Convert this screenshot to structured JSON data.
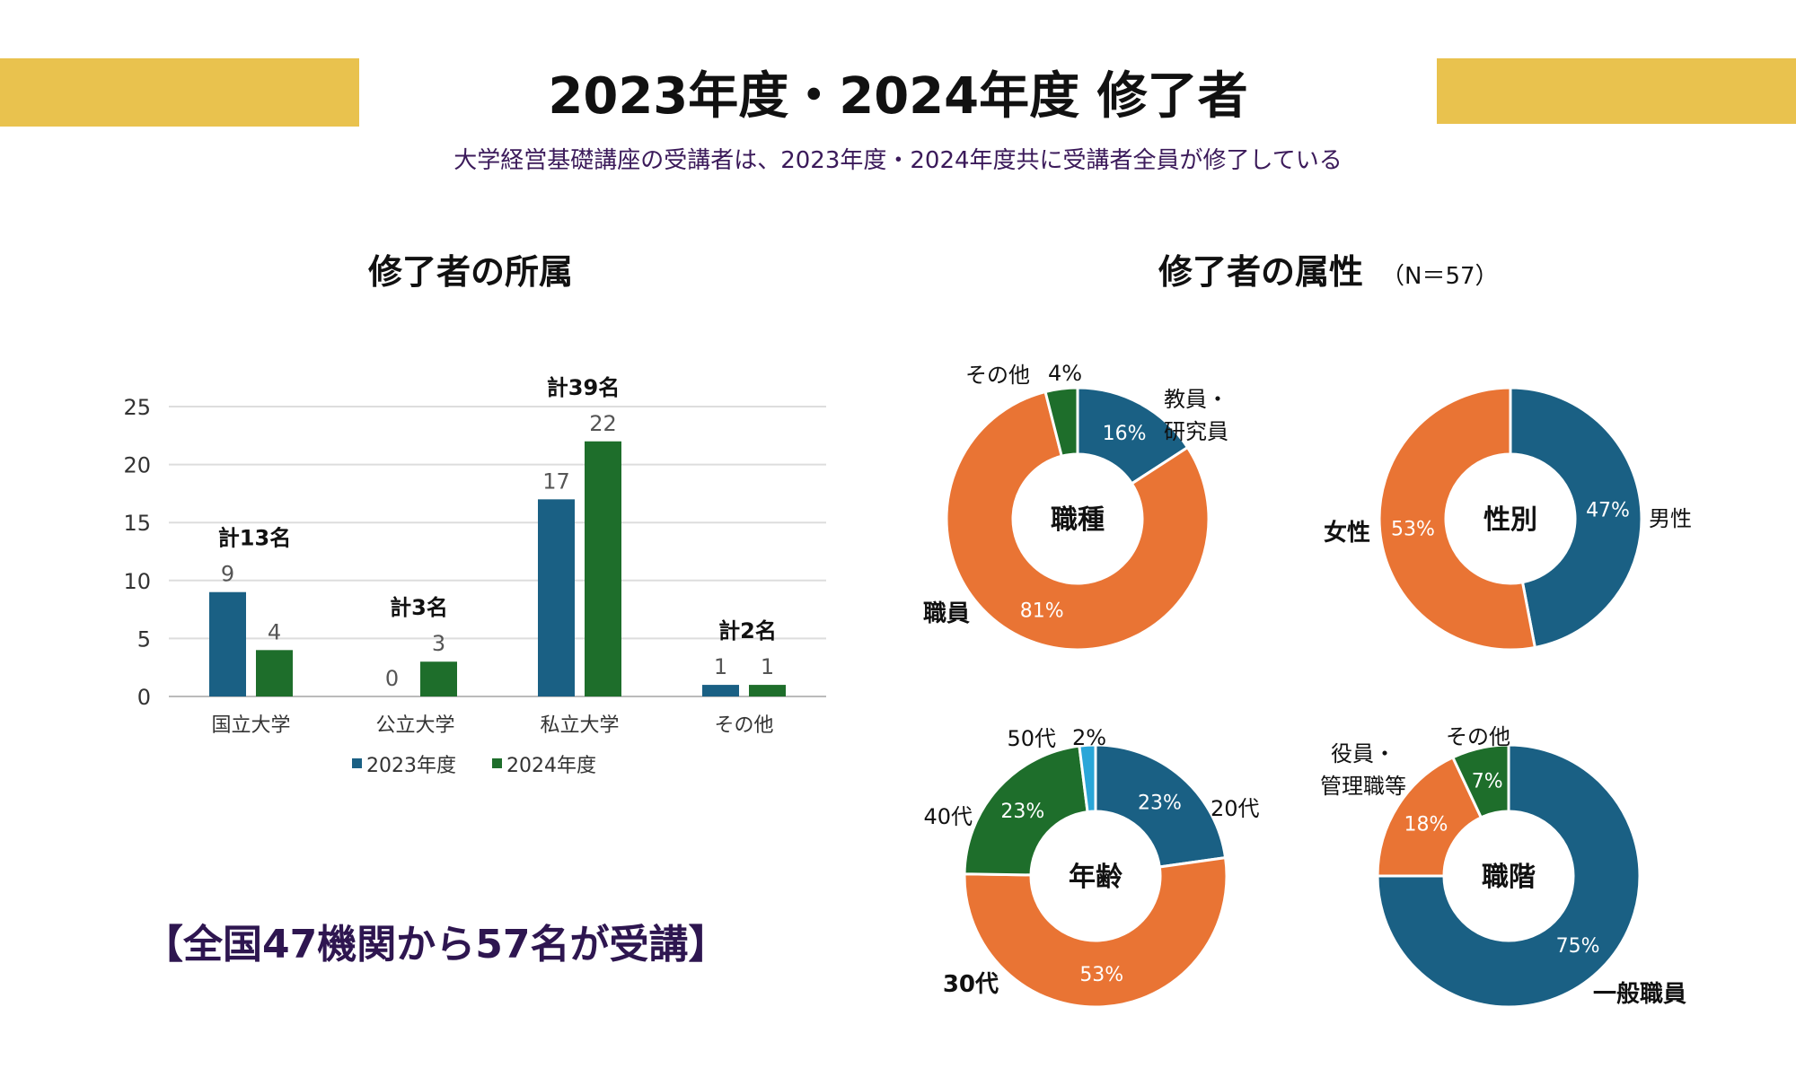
{
  "title": "2023年度・2024年度 修了者",
  "subtitle": "大学経営基礎講座の受講者は、2023年度・2024年度共に受講者全員が修了している",
  "section_left": "修了者の所属",
  "section_right": "修了者の属性",
  "section_right_n": "（N＝57）",
  "bottom_note": "【全国47機関から57名が受講】",
  "colors": {
    "accent": "#E9C24E",
    "blue": "#1A6084",
    "green": "#1E6E2B",
    "orange": "#E97434",
    "lightblue": "#2AA6D8"
  },
  "chart_data": [
    {
      "type": "bar",
      "categories": [
        "国立大学",
        "公立大学",
        "私立大学",
        "その他"
      ],
      "series": [
        {
          "name": "2023年度",
          "values": [
            9,
            0,
            17,
            1
          ]
        },
        {
          "name": "2024年度",
          "values": [
            4,
            3,
            22,
            1
          ]
        }
      ],
      "annotations": [
        "計13名",
        "計3名",
        "計39名",
        "計2名"
      ],
      "yticks": [
        "0",
        "5",
        "10",
        "15",
        "20",
        "25"
      ],
      "ylim": [
        0,
        25
      ],
      "grid": true,
      "legend": "bottom"
    },
    {
      "type": "pie",
      "center": "職種",
      "slices": [
        {
          "label": [
            "教員・",
            "研究員"
          ],
          "value": 16,
          "text": "16%",
          "color": "#1A6084"
        },
        {
          "label": [
            "職員"
          ],
          "value": 81,
          "text": "81%",
          "color": "#E97434"
        },
        {
          "label": [
            "その他"
          ],
          "value": 4,
          "text": "4%",
          "color": "#1E6E2B"
        }
      ]
    },
    {
      "type": "pie",
      "center": "性別",
      "slices": [
        {
          "label": [
            "男性"
          ],
          "value": 47,
          "text": "47%",
          "color": "#1A6084"
        },
        {
          "label": [
            "女性"
          ],
          "value": 53,
          "text": "53%",
          "color": "#E97434"
        }
      ]
    },
    {
      "type": "pie",
      "center": "年齢",
      "slices": [
        {
          "label": [
            "20代"
          ],
          "value": 23,
          "text": "23%",
          "color": "#1A6084"
        },
        {
          "label": [
            "30代"
          ],
          "value": 53,
          "text": "53%",
          "color": "#E97434"
        },
        {
          "label": [
            "40代"
          ],
          "value": 23,
          "text": "23%",
          "color": "#1E6E2B"
        },
        {
          "label": [
            "50代"
          ],
          "value": 2,
          "text": "2%",
          "color": "#2AA6D8"
        }
      ]
    },
    {
      "type": "pie",
      "center": "職階",
      "slices": [
        {
          "label": [
            "一般職員"
          ],
          "value": 75,
          "text": "75%",
          "color": "#1A6084"
        },
        {
          "label": [
            "役員・",
            "管理職等"
          ],
          "value": 18,
          "text": "18%",
          "color": "#E97434"
        },
        {
          "label": [
            "その他"
          ],
          "value": 7,
          "text": "7%",
          "color": "#1E6E2B"
        }
      ]
    }
  ]
}
